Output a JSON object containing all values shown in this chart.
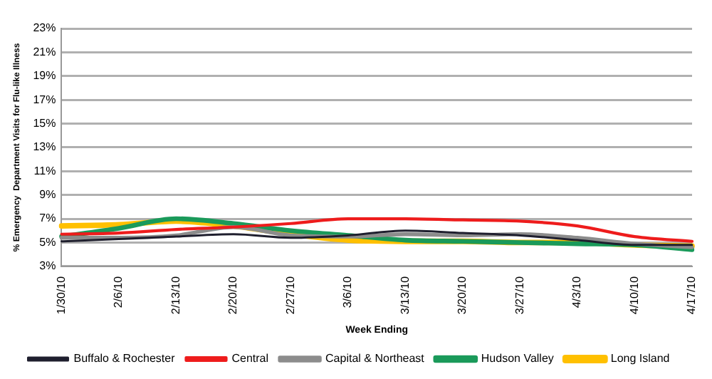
{
  "chart_data": {
    "type": "line",
    "xlabel": "Week Ending",
    "ylabel": "% Emergency  Department Visits for Flu-like Illness",
    "categories": [
      "1/30/10",
      "2/6/10",
      "2/13/10",
      "2/20/10",
      "2/27/10",
      "3/6/10",
      "3/13/10",
      "3/20/10",
      "3/27/10",
      "4/3/10",
      "4/10/10",
      "4/17/10"
    ],
    "series": [
      {
        "name": "Buffalo & Rochester",
        "color": "#1f1f2e",
        "values": [
          5.1,
          5.3,
          5.5,
          5.7,
          5.4,
          5.6,
          6.0,
          5.8,
          5.6,
          5.2,
          4.8,
          4.8
        ]
      },
      {
        "name": "Central",
        "color": "#ee1c1c",
        "values": [
          5.7,
          5.8,
          6.1,
          6.3,
          6.6,
          7.0,
          7.0,
          6.9,
          6.8,
          6.4,
          5.5,
          5.1
        ]
      },
      {
        "name": "Capital & Northeast",
        "color": "#8c8c8c",
        "values": [
          5.4,
          5.4,
          5.6,
          6.3,
          5.6,
          5.5,
          5.7,
          5.6,
          5.7,
          5.4,
          4.9,
          4.6
        ]
      },
      {
        "name": "Hudson Valley",
        "color": "#1a9a5a",
        "values": [
          5.5,
          6.2,
          7.0,
          6.6,
          6.0,
          5.6,
          5.2,
          5.1,
          5.0,
          4.9,
          4.8,
          4.4
        ]
      },
      {
        "name": "Long Island",
        "color": "#ffc000",
        "values": [
          6.4,
          6.5,
          6.8,
          6.4,
          5.7,
          5.2,
          5.1,
          5.1,
          5.0,
          5.0,
          4.8,
          4.7
        ]
      }
    ],
    "ylim": [
      3,
      23
    ],
    "yticks": [
      {
        "value": 3,
        "label": "3%"
      },
      {
        "value": 5,
        "label": "5%"
      },
      {
        "value": 7,
        "label": "7%"
      },
      {
        "value": 9,
        "label": "9%"
      },
      {
        "value": 11,
        "label": "11%"
      },
      {
        "value": 13,
        "label": "13%"
      },
      {
        "value": 15,
        "label": "15%"
      },
      {
        "value": 17,
        "label": "17%"
      },
      {
        "value": 19,
        "label": "19%"
      },
      {
        "value": 21,
        "label": "21%"
      },
      {
        "value": 23,
        "label": "23%"
      }
    ],
    "grid": "y",
    "legend": "bottom",
    "marker": "none",
    "line_style": "solid"
  }
}
